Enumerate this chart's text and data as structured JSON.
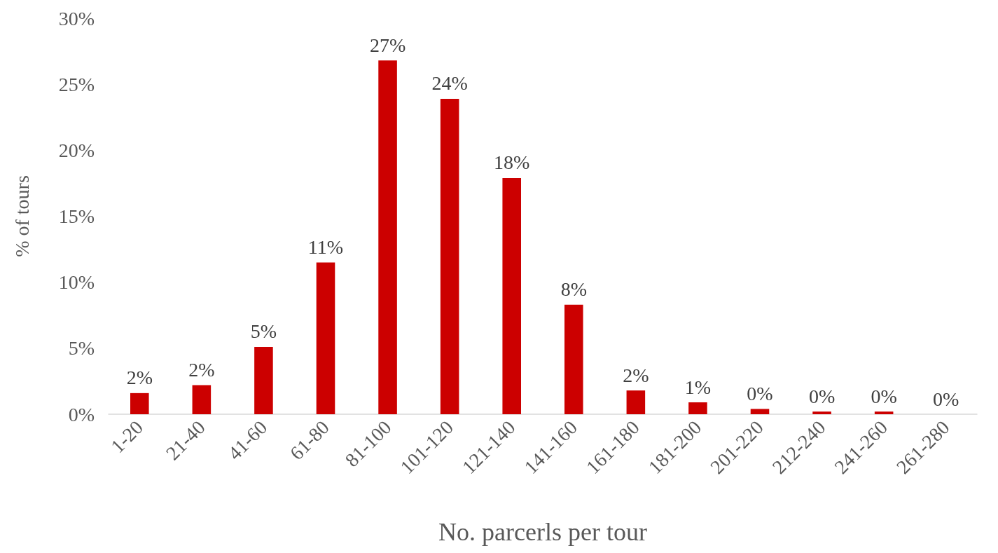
{
  "chart_data": {
    "type": "bar",
    "xlabel": "No. parcerls per tour",
    "ylabel": "% of tours",
    "categories": [
      "1-20",
      "21-40",
      "41-60",
      "61-80",
      "81-100",
      "101-120",
      "121-140",
      "141-160",
      "161-180",
      "181-200",
      "201-220",
      "212-240",
      "241-260",
      "261-280"
    ],
    "values": [
      1.6,
      2.2,
      5.1,
      11.5,
      26.8,
      23.9,
      17.9,
      8.3,
      1.8,
      0.9,
      0.4,
      0.2,
      0.2,
      0
    ],
    "value_labels": [
      "2%",
      "2%",
      "5%",
      "11%",
      "27%",
      "24%",
      "18%",
      "8%",
      "2%",
      "1%",
      "0%",
      "0%",
      "0%",
      "0%"
    ],
    "color": "#cc0000",
    "ylim": [
      0,
      30
    ],
    "yticks": [
      {
        "value": 0,
        "label": "0%"
      },
      {
        "value": 5,
        "label": "5%"
      },
      {
        "value": 10,
        "label": "10%"
      },
      {
        "value": 15,
        "label": "15%"
      },
      {
        "value": 20,
        "label": "20%"
      },
      {
        "value": 25,
        "label": "25%"
      },
      {
        "value": 30,
        "label": "30%"
      }
    ],
    "grid": false
  }
}
